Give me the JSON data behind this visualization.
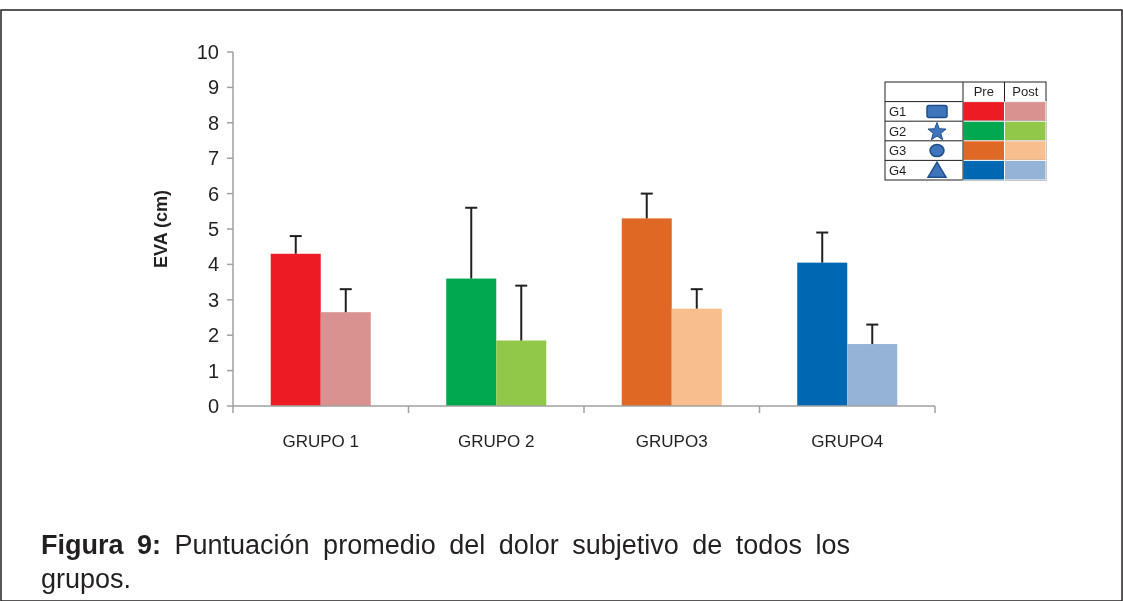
{
  "chart_data": {
    "type": "bar",
    "ylabel": "EVA (cm)",
    "categories": [
      "GRUPO 1",
      "GRUPO 2",
      "GRUPO3",
      "GRUPO4"
    ],
    "series": [
      {
        "name": "Pre",
        "colors": [
          "#ed1c24",
          "#00a94f",
          "#e06825",
          "#0068b3"
        ],
        "values": [
          4.3,
          3.6,
          5.3,
          4.05
        ],
        "errors": [
          [
            4.3,
            4.8
          ],
          [
            3.6,
            5.6
          ],
          [
            5.3,
            6.0
          ],
          [
            4.05,
            4.9
          ]
        ]
      },
      {
        "name": "Post",
        "colors": [
          "#d99290",
          "#92c84a",
          "#f8be8e",
          "#95b2d7"
        ],
        "values": [
          2.65,
          1.85,
          2.75,
          1.75
        ],
        "errors": [
          [
            2.65,
            3.3
          ],
          [
            1.85,
            3.4
          ],
          [
            2.75,
            3.3
          ],
          [
            1.75,
            2.3
          ]
        ]
      }
    ],
    "ylim": [
      0,
      10
    ],
    "yticks": [
      0,
      1,
      2,
      3,
      4,
      5,
      6,
      7,
      8,
      9,
      10
    ],
    "legend": "top right",
    "grid": false,
    "annotations": [
      "Figura 9: Puntuación promedio del dolor subjetivo de todos los grupos.",
      "G1",
      "G2",
      "G3",
      "G4"
    ]
  }
}
